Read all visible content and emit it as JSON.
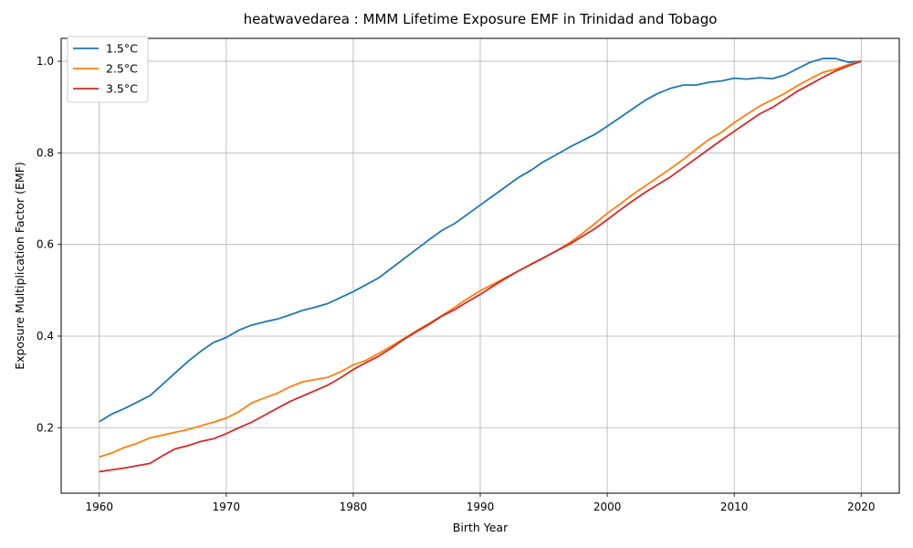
{
  "chart_data": {
    "type": "line",
    "title": "heatwavedarea : MMM Lifetime Exposure EMF in Trinidad and Tobago",
    "xlabel": "Birth Year",
    "ylabel": "Exposure Multiplication Factor (EMF)",
    "xlim": [
      1957,
      2023
    ],
    "ylim": [
      0.057,
      1.05
    ],
    "xticks": [
      1960,
      1970,
      1980,
      1990,
      2000,
      2010,
      2020
    ],
    "yticks": [
      0.2,
      0.4,
      0.6,
      0.8,
      1.0
    ],
    "xtick_labels": [
      "1960",
      "1970",
      "1980",
      "1990",
      "2000",
      "2010",
      "2020"
    ],
    "ytick_labels": [
      "0.2",
      "0.4",
      "0.6",
      "0.8",
      "1.0"
    ],
    "grid": true,
    "legend_position": "top-left",
    "x": [
      1960,
      1961,
      1962,
      1963,
      1964,
      1965,
      1966,
      1967,
      1968,
      1969,
      1970,
      1971,
      1972,
      1973,
      1974,
      1975,
      1976,
      1977,
      1978,
      1979,
      1980,
      1981,
      1982,
      1983,
      1984,
      1985,
      1986,
      1987,
      1988,
      1989,
      1990,
      1991,
      1992,
      1993,
      1994,
      1995,
      1996,
      1997,
      1998,
      1999,
      2000,
      2001,
      2002,
      2003,
      2004,
      2005,
      2006,
      2007,
      2008,
      2009,
      2010,
      2011,
      2012,
      2013,
      2014,
      2015,
      2016,
      2017,
      2018,
      2019,
      2020
    ],
    "series": [
      {
        "name": "1.5°C",
        "color": "#1f77b4",
        "values": [
          0.213,
          0.23,
          0.242,
          0.256,
          0.27,
          0.295,
          0.32,
          0.345,
          0.367,
          0.386,
          0.397,
          0.413,
          0.424,
          0.431,
          0.437,
          0.446,
          0.456,
          0.463,
          0.471,
          0.484,
          0.497,
          0.512,
          0.527,
          0.548,
          0.569,
          0.59,
          0.611,
          0.631,
          0.646,
          0.666,
          0.686,
          0.706,
          0.726,
          0.746,
          0.762,
          0.781,
          0.796,
          0.812,
          0.826,
          0.84,
          0.858,
          0.877,
          0.896,
          0.915,
          0.93,
          0.941,
          0.948,
          0.948,
          0.954,
          0.957,
          0.963,
          0.961,
          0.964,
          0.962,
          0.97,
          0.984,
          0.998,
          1.006,
          1.006,
          0.998,
          1.0
        ]
      },
      {
        "name": "2.5°C",
        "color": "#ff7f0e",
        "values": [
          0.136,
          0.145,
          0.157,
          0.166,
          0.178,
          0.184,
          0.19,
          0.196,
          0.204,
          0.212,
          0.221,
          0.235,
          0.254,
          0.265,
          0.275,
          0.289,
          0.3,
          0.305,
          0.31,
          0.322,
          0.337,
          0.347,
          0.362,
          0.378,
          0.395,
          0.412,
          0.428,
          0.445,
          0.463,
          0.482,
          0.499,
          0.513,
          0.528,
          0.542,
          0.556,
          0.571,
          0.586,
          0.603,
          0.623,
          0.645,
          0.668,
          0.688,
          0.709,
          0.728,
          0.747,
          0.766,
          0.786,
          0.808,
          0.829,
          0.845,
          0.866,
          0.884,
          0.902,
          0.916,
          0.93,
          0.947,
          0.962,
          0.976,
          0.983,
          0.993,
          1.0
        ]
      },
      {
        "name": "3.5°C",
        "color": "#d62728",
        "values": [
          0.104,
          0.108,
          0.112,
          0.117,
          0.122,
          0.139,
          0.154,
          0.161,
          0.17,
          0.176,
          0.187,
          0.2,
          0.212,
          0.227,
          0.242,
          0.257,
          0.269,
          0.281,
          0.293,
          0.309,
          0.327,
          0.342,
          0.356,
          0.374,
          0.393,
          0.41,
          0.426,
          0.444,
          0.458,
          0.475,
          0.491,
          0.509,
          0.526,
          0.542,
          0.557,
          0.571,
          0.586,
          0.6,
          0.617,
          0.634,
          0.654,
          0.675,
          0.695,
          0.714,
          0.731,
          0.748,
          0.768,
          0.788,
          0.808,
          0.828,
          0.847,
          0.866,
          0.885,
          0.899,
          0.917,
          0.935,
          0.95,
          0.965,
          0.979,
          0.99,
          1.0
        ]
      }
    ]
  }
}
